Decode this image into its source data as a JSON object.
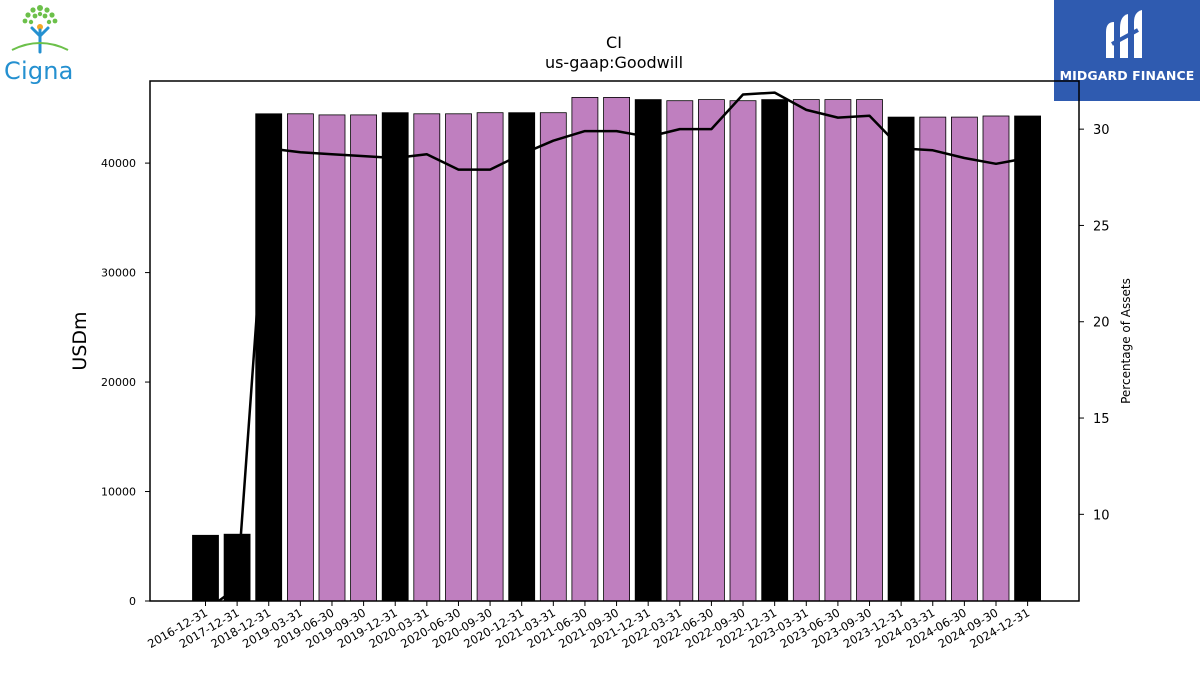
{
  "logos": {
    "cigna": {
      "text": "Cigna",
      "brand_color": "#2490d0",
      "leaf_color": "#6cc04a"
    },
    "midgard": {
      "text": "MIDGARD FINANCE",
      "bg_color": "#2f5bb0"
    }
  },
  "chart_data": {
    "type": "bar",
    "title": "CI",
    "subtitle": "us-gaap:Goodwill",
    "ylabel": "USDm",
    "y2label": "Percentage of Assets",
    "ylim": [
      0,
      47500
    ],
    "y2lim": [
      5.5,
      32.5
    ],
    "yticks": [
      0,
      10000,
      20000,
      30000,
      40000
    ],
    "y2ticks": [
      10,
      15,
      20,
      25,
      30
    ],
    "grid": false,
    "colors": {
      "annual": "#000000",
      "quarterly": "#bf7fbf",
      "line": "#000000"
    },
    "categories": [
      "2016-12-31",
      "2017-12-31",
      "2018-12-31",
      "2019-03-31",
      "2019-06-30",
      "2019-09-30",
      "2019-12-31",
      "2020-03-31",
      "2020-06-30",
      "2020-09-30",
      "2020-12-31",
      "2021-03-31",
      "2021-06-30",
      "2021-09-30",
      "2021-12-31",
      "2022-03-31",
      "2022-06-30",
      "2022-09-30",
      "2022-12-31",
      "2023-03-31",
      "2023-06-30",
      "2023-09-30",
      "2023-12-31",
      "2024-03-31",
      "2024-06-30",
      "2024-09-30",
      "2024-12-31"
    ],
    "series": [
      {
        "values": [
          6000,
          6100,
          44500,
          44500,
          44400,
          44400,
          44600,
          44500,
          44500,
          44600,
          44600,
          44600,
          46000,
          46000,
          45800,
          45700,
          45800,
          45700,
          45800,
          45800,
          45800,
          45800,
          44200,
          44200,
          44200,
          44300,
          44300
        ],
        "period_type": [
          "annual",
          "annual",
          "annual",
          "quarterly",
          "quarterly",
          "quarterly",
          "annual",
          "quarterly",
          "quarterly",
          "quarterly",
          "annual",
          "quarterly",
          "quarterly",
          "quarterly",
          "annual",
          "quarterly",
          "quarterly",
          "quarterly",
          "annual",
          "quarterly",
          "quarterly",
          "quarterly",
          "annual",
          "quarterly",
          "quarterly",
          "quarterly",
          "annual"
        ]
      },
      {
        "axis": "right",
        "type": "line",
        "values": [
          5.0,
          6.2,
          29.0,
          28.8,
          28.7,
          28.6,
          28.5,
          28.7,
          27.9,
          27.9,
          28.7,
          29.4,
          29.9,
          29.9,
          29.6,
          30.0,
          30.0,
          31.8,
          31.9,
          31.0,
          30.6,
          30.7,
          29.0,
          28.9,
          28.5,
          28.2,
          28.5
        ]
      }
    ]
  }
}
